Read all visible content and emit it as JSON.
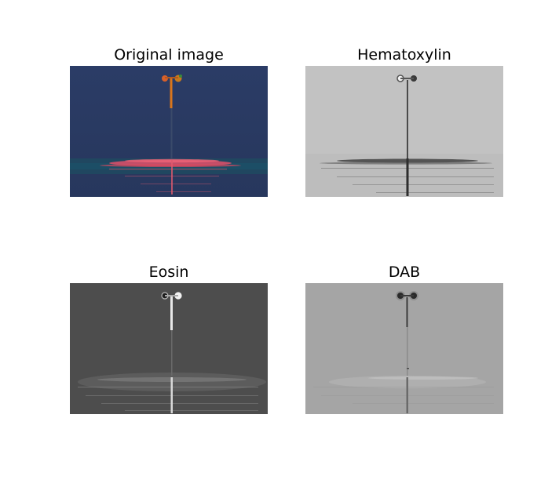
{
  "figure": {
    "panels": [
      {
        "id": "original",
        "title": "Original image"
      },
      {
        "id": "hematoxylin",
        "title": "Hematoxylin"
      },
      {
        "id": "eosin",
        "title": "Eosin"
      },
      {
        "id": "dab",
        "title": "DAB"
      }
    ]
  }
}
